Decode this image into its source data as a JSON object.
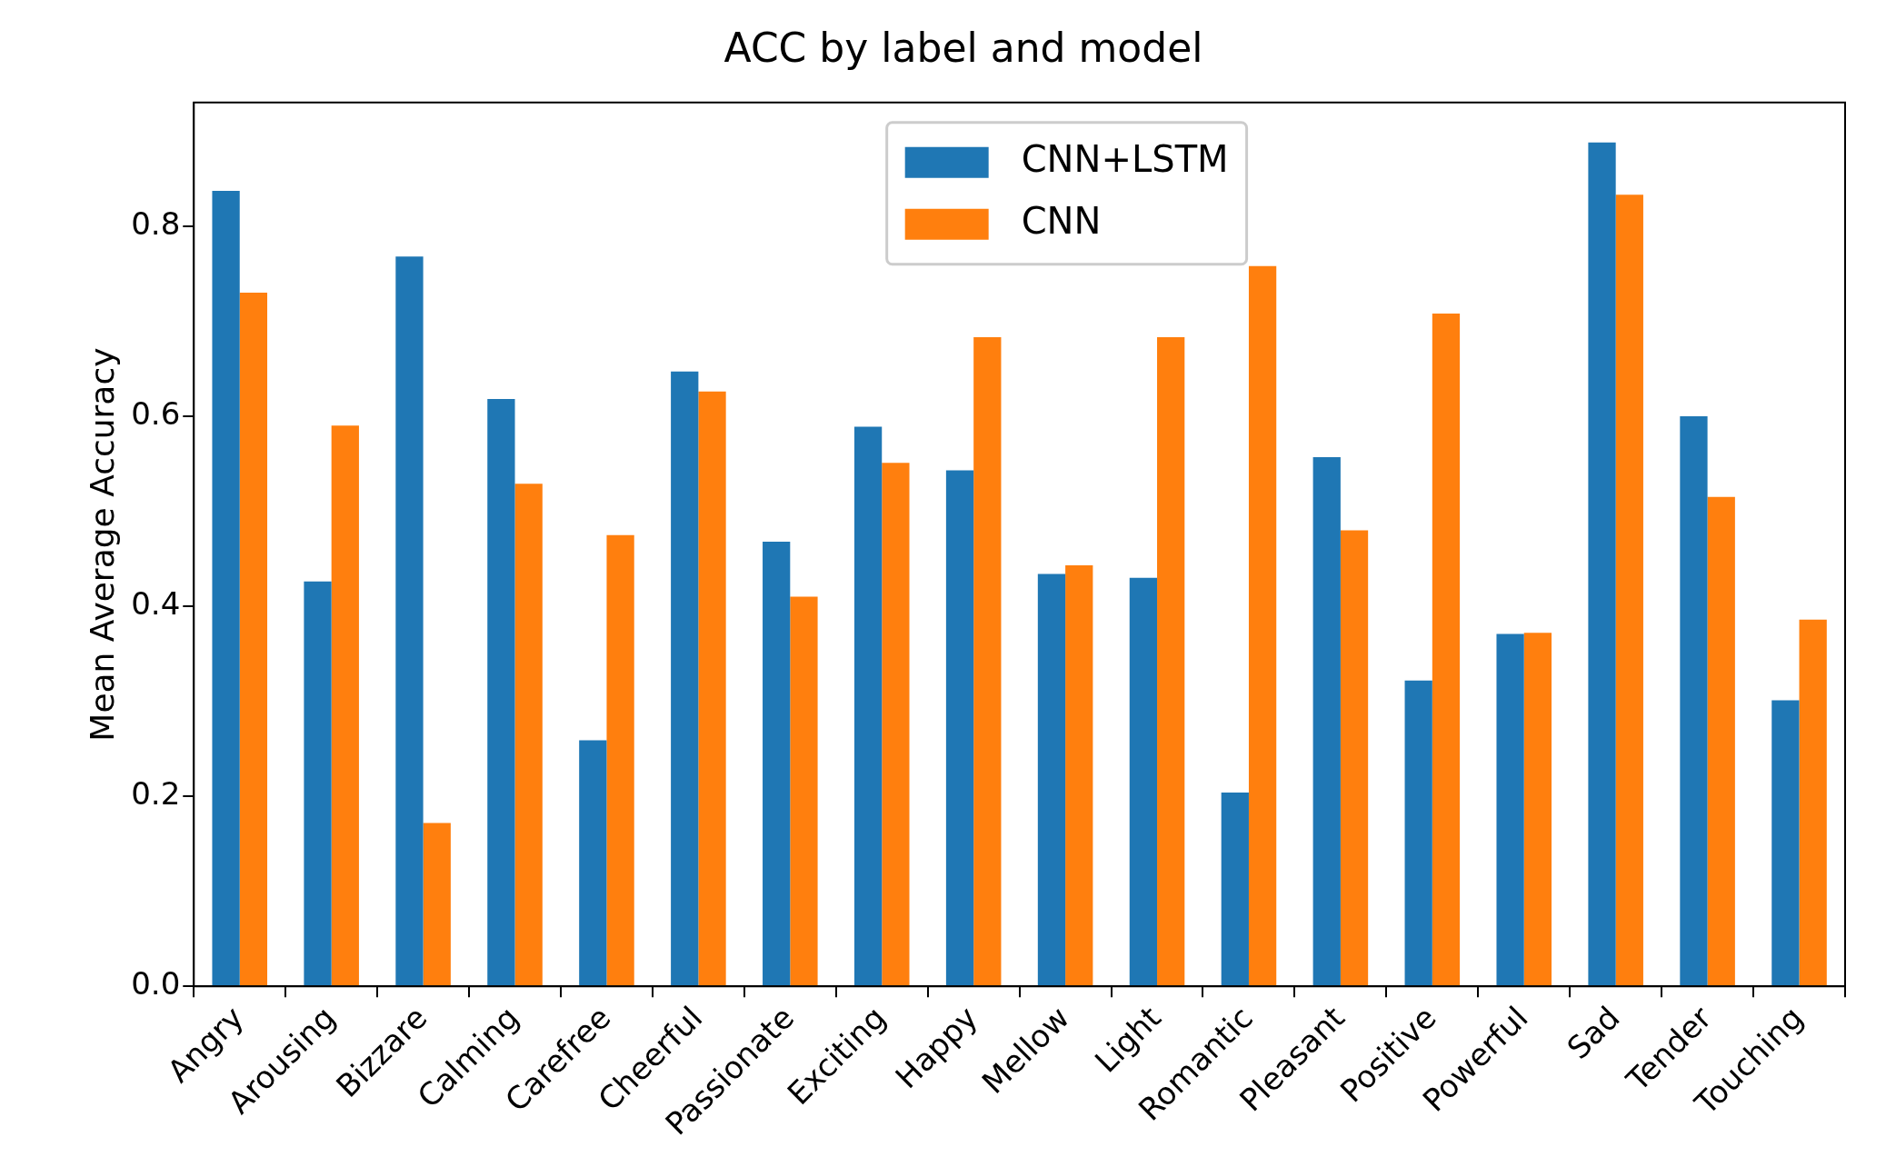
{
  "chart_data": {
    "type": "bar",
    "title": "ACC by label and model",
    "ylabel": "Mean Average Accuracy",
    "categories": [
      "Angry",
      "Arousing",
      "Bizzare",
      "Calming",
      "Carefree",
      "Cheerful",
      "Passionate",
      "Exciting",
      "Happy",
      "Mellow",
      "Light",
      "Romantic",
      "Pleasant",
      "Positive",
      "Powerful",
      "Sad",
      "Tender",
      "Touching"
    ],
    "series": [
      {
        "name": "CNN+LSTM",
        "color": "#1f77b4",
        "values": [
          0.837,
          0.426,
          0.768,
          0.618,
          0.259,
          0.647,
          0.468,
          0.589,
          0.543,
          0.434,
          0.43,
          0.204,
          0.557,
          0.322,
          0.371,
          0.888,
          0.6,
          0.301
        ]
      },
      {
        "name": "CNN",
        "color": "#ff7f0e",
        "values": [
          0.73,
          0.59,
          0.172,
          0.529,
          0.475,
          0.626,
          0.41,
          0.551,
          0.683,
          0.443,
          0.683,
          0.758,
          0.48,
          0.708,
          0.372,
          0.833,
          0.515,
          0.386
        ]
      }
    ],
    "ylim": [
      0,
      0.93
    ],
    "yticks": [
      {
        "value": 0,
        "label": "0.0"
      },
      {
        "value": 0.2,
        "label": "0.2"
      },
      {
        "value": 0.4,
        "label": "0.4"
      },
      {
        "value": 0.6,
        "label": "0.6"
      },
      {
        "value": 0.8,
        "label": "0.8"
      }
    ],
    "legend": "top"
  }
}
